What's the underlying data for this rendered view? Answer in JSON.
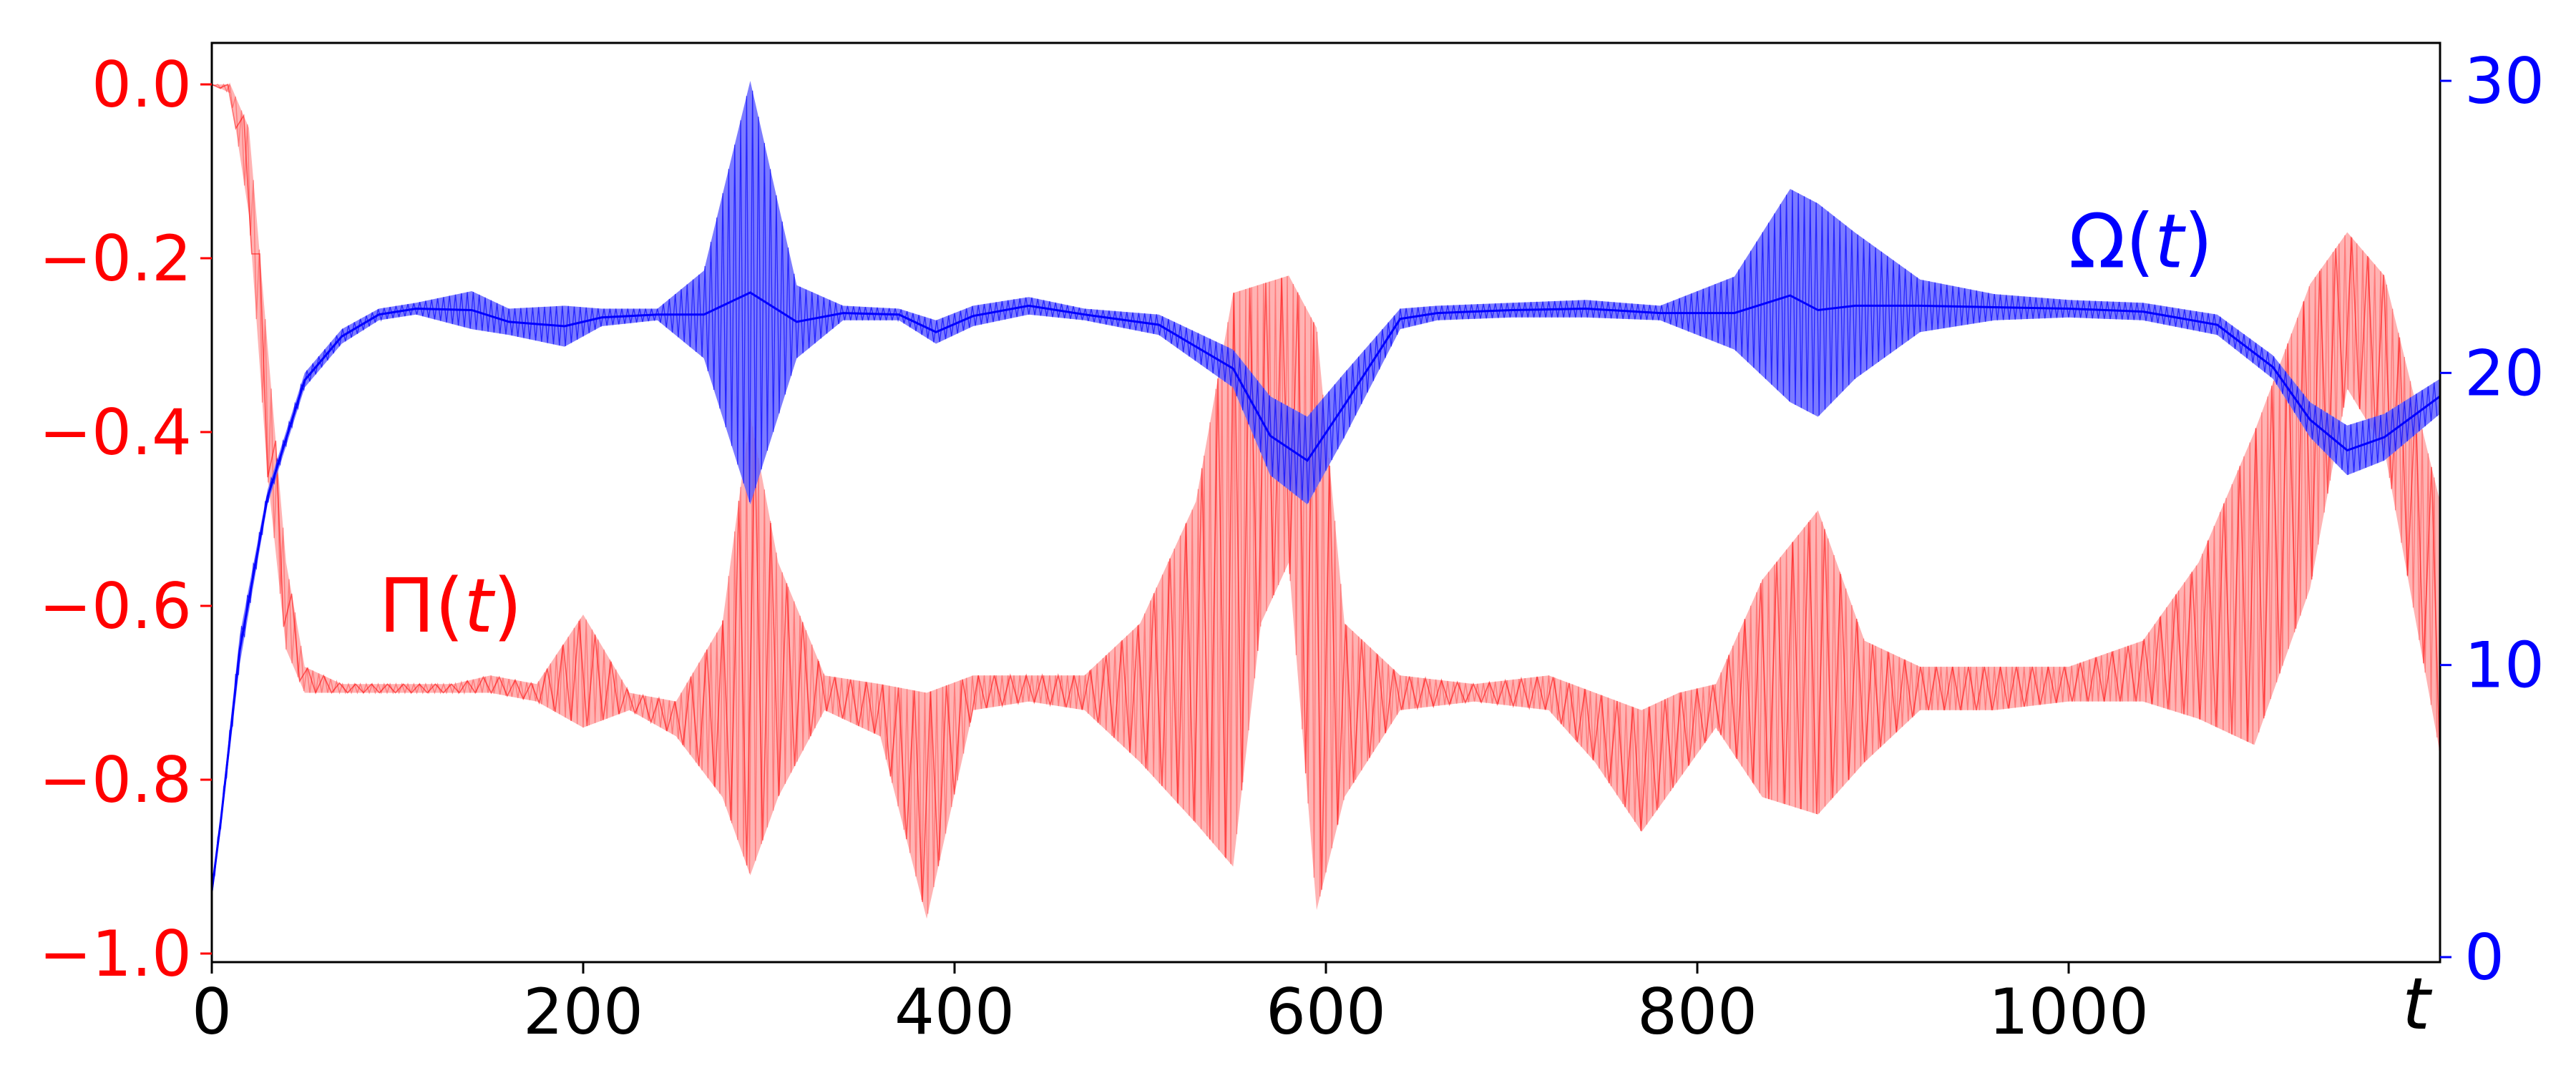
{
  "colors": {
    "pi_primary": "#ff0000",
    "pi_light": "#ffb3b3",
    "pi_mid": "#ff6666",
    "omega": "#0000ff",
    "omega_band": "#6464ff",
    "axis": "#000000"
  },
  "chart_data": {
    "type": "line",
    "title": "",
    "xlabel": "t",
    "ylabel_left": "",
    "ylabel_right": "",
    "xlim": [
      0,
      1200
    ],
    "ylim_left": [
      -1.0,
      0.0
    ],
    "ylim_right": [
      0,
      30
    ],
    "x_ticks": [
      0,
      200,
      400,
      600,
      800,
      1000
    ],
    "y_left_ticks": [
      0.0,
      -0.2,
      -0.4,
      -0.6,
      -0.8,
      -1.0
    ],
    "y_left_tick_labels": [
      "0.0",
      "−0.2",
      "−0.4",
      "−0.6",
      "−0.8",
      "−1.0"
    ],
    "y_right_ticks": [
      0,
      10,
      20,
      30
    ],
    "y_right_tick_labels": [
      "0",
      "10",
      "20",
      "30"
    ],
    "grid": false,
    "legend": "none",
    "annotations": [
      {
        "text_main": "Π",
        "text_paren_open": "(",
        "text_var": "t",
        "text_paren_close": ")",
        "x": 90,
        "y": -0.6,
        "axis": "left",
        "color": "#ff0000"
      },
      {
        "text_main": "Ω",
        "text_paren_open": "(",
        "text_var": "t",
        "text_paren_close": ")",
        "x": 1000,
        "y": 24.5,
        "axis": "right",
        "color": "#0000ff"
      }
    ],
    "series": [
      {
        "name": "Π(t)",
        "axis": "left",
        "style": "oscillating-band",
        "x": [
          0,
          10,
          20,
          30,
          40,
          50,
          70,
          100,
          130,
          150,
          175,
          200,
          225,
          250,
          275,
          290,
          305,
          330,
          360,
          385,
          410,
          440,
          470,
          500,
          530,
          550,
          565,
          580,
          595,
          610,
          640,
          680,
          720,
          745,
          770,
          790,
          810,
          835,
          865,
          890,
          920,
          960,
          1000,
          1040,
          1070,
          1100,
          1130,
          1150,
          1170,
          1200
        ],
        "upper": [
          0.0,
          0.0,
          -0.05,
          -0.3,
          -0.55,
          -0.67,
          -0.69,
          -0.69,
          -0.69,
          -0.68,
          -0.69,
          -0.61,
          -0.7,
          -0.71,
          -0.62,
          -0.38,
          -0.55,
          -0.68,
          -0.69,
          -0.7,
          -0.68,
          -0.68,
          -0.68,
          -0.62,
          -0.48,
          -0.24,
          -0.23,
          -0.22,
          -0.28,
          -0.62,
          -0.68,
          -0.69,
          -0.68,
          -0.7,
          -0.72,
          -0.7,
          -0.69,
          -0.57,
          -0.49,
          -0.64,
          -0.67,
          -0.67,
          -0.67,
          -0.64,
          -0.55,
          -0.4,
          -0.23,
          -0.17,
          -0.22,
          -0.48
        ],
        "lower": [
          0.0,
          -0.01,
          -0.15,
          -0.45,
          -0.65,
          -0.7,
          -0.7,
          -0.7,
          -0.7,
          -0.7,
          -0.71,
          -0.74,
          -0.72,
          -0.75,
          -0.82,
          -0.91,
          -0.82,
          -0.72,
          -0.75,
          -0.96,
          -0.72,
          -0.71,
          -0.72,
          -0.78,
          -0.85,
          -0.9,
          -0.62,
          -0.55,
          -0.95,
          -0.82,
          -0.72,
          -0.71,
          -0.72,
          -0.78,
          -0.86,
          -0.8,
          -0.74,
          -0.82,
          -0.84,
          -0.78,
          -0.72,
          -0.72,
          -0.71,
          -0.71,
          -0.73,
          -0.76,
          -0.58,
          -0.35,
          -0.42,
          -0.77
        ]
      },
      {
        "name": "Ω(t)",
        "axis": "right",
        "style": "oscillating-band",
        "x": [
          0,
          5,
          15,
          30,
          50,
          70,
          90,
          110,
          140,
          160,
          190,
          210,
          240,
          265,
          290,
          315,
          340,
          370,
          390,
          410,
          440,
          470,
          510,
          550,
          570,
          590,
          610,
          640,
          660,
          700,
          740,
          780,
          820,
          850,
          865,
          885,
          920,
          960,
          1000,
          1040,
          1080,
          1110,
          1130,
          1150,
          1170,
          1200
        ],
        "upper": [
          2.5,
          5,
          11,
          16,
          20,
          21.5,
          22.2,
          22.4,
          22.8,
          22.2,
          22.3,
          22.2,
          22.2,
          23.5,
          30.0,
          23.0,
          22.3,
          22.2,
          21.8,
          22.3,
          22.6,
          22.2,
          22.0,
          20.8,
          19.2,
          18.5,
          20.0,
          22.2,
          22.3,
          22.4,
          22.5,
          22.3,
          23.3,
          26.3,
          25.8,
          24.8,
          23.2,
          22.7,
          22.5,
          22.4,
          22.0,
          20.6,
          19.0,
          18.2,
          18.6,
          19.8
        ],
        "lower": [
          2.0,
          4.5,
          10,
          15.5,
          19.5,
          21.0,
          21.8,
          22.0,
          21.5,
          21.3,
          20.9,
          21.6,
          21.8,
          20.5,
          15.5,
          20.5,
          21.8,
          21.8,
          21.0,
          21.6,
          22.0,
          21.8,
          21.3,
          19.5,
          16.5,
          15.5,
          17.8,
          21.5,
          21.8,
          21.9,
          21.9,
          21.8,
          20.8,
          19.0,
          18.5,
          19.8,
          21.4,
          21.8,
          21.9,
          21.8,
          21.3,
          19.8,
          17.8,
          16.5,
          17.0,
          18.6
        ]
      }
    ]
  }
}
